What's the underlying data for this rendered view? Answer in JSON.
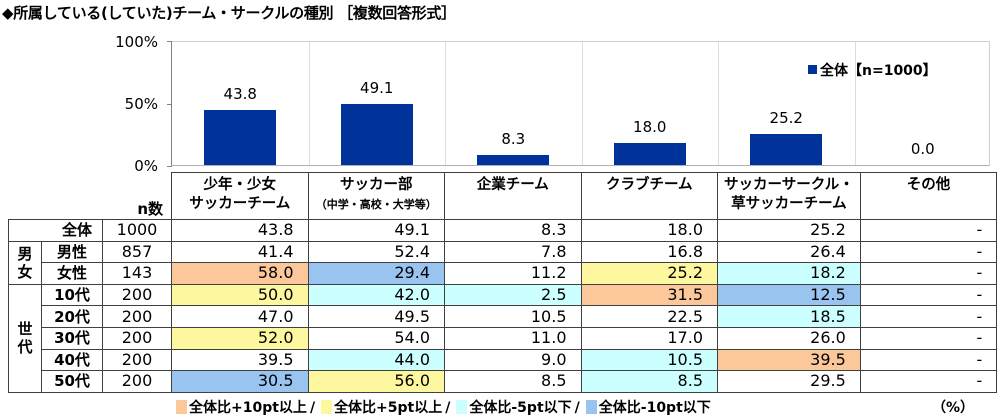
{
  "title": "◆所属している(していた)チーム・サークルの種別 ［複数回答形式］",
  "chart_data": {
    "type": "bar",
    "title": "所属している(していた)チーム・サークルの種別 ［複数回答形式］",
    "categories": [
      "少年・少女サッカーチーム",
      "サッカー部（中学・高校・大学等）",
      "企業チーム",
      "クラブチーム",
      "サッカーサークル・草サッカーチーム",
      "その他"
    ],
    "series": [
      {
        "name": "全体【n=1000】",
        "values": [
          43.8,
          49.1,
          8.3,
          18.0,
          25.2,
          0.0
        ],
        "color": "#003399"
      }
    ],
    "value_labels": [
      "43.8",
      "49.1",
      "8.3",
      "18.0",
      "25.2",
      "0.0"
    ],
    "yticks": [
      "100%",
      "50%",
      "0%"
    ],
    "ylim": [
      0,
      100
    ],
    "xlabel": "",
    "ylabel": "",
    "legend_position": "top-right",
    "grid": "vertical category separators"
  },
  "legend": {
    "label": "全体【n=1000】"
  },
  "table": {
    "n_header": "n数",
    "headers": [
      {
        "line1": "少年・少女",
        "line2": "サッカーチーム",
        "small": false
      },
      {
        "line1": "サッカー部",
        "line2": "（中学・高校・大学等）",
        "small": true
      },
      {
        "line1": "企業チーム",
        "line2": "",
        "small": false
      },
      {
        "line1": "クラブチーム",
        "line2": "",
        "small": false
      },
      {
        "line1": "サッカーサークル・",
        "line2": "草サッカーチーム",
        "small": false
      },
      {
        "line1": "その他",
        "line2": "",
        "small": false
      }
    ],
    "groups": {
      "gender": "男女",
      "age": "世代"
    },
    "rows": [
      {
        "label": "全体",
        "n": "1000",
        "values": [
          "43.8",
          "49.1",
          "8.3",
          "18.0",
          "25.2",
          "-"
        ],
        "hl": [
          "",
          "",
          "",
          "",
          "",
          ""
        ]
      },
      {
        "label": "男性",
        "n": "857",
        "values": [
          "41.4",
          "52.4",
          "7.8",
          "16.8",
          "26.4",
          "-"
        ],
        "hl": [
          "",
          "",
          "",
          "",
          "",
          ""
        ]
      },
      {
        "label": "女性",
        "n": "143",
        "values": [
          "58.0",
          "29.4",
          "11.2",
          "25.2",
          "18.2",
          "-"
        ],
        "hl": [
          "p10",
          "m10",
          "",
          "p5",
          "m5",
          ""
        ]
      },
      {
        "label": "10代",
        "n": "200",
        "values": [
          "50.0",
          "42.0",
          "2.5",
          "31.5",
          "12.5",
          "-"
        ],
        "hl": [
          "p5",
          "m5",
          "m5",
          "p10",
          "m10",
          ""
        ]
      },
      {
        "label": "20代",
        "n": "200",
        "values": [
          "47.0",
          "49.5",
          "10.5",
          "22.5",
          "18.5",
          "-"
        ],
        "hl": [
          "",
          "",
          "",
          "",
          "m5",
          ""
        ]
      },
      {
        "label": "30代",
        "n": "200",
        "values": [
          "52.0",
          "54.0",
          "11.0",
          "17.0",
          "26.0",
          "-"
        ],
        "hl": [
          "p5",
          "",
          "",
          "",
          "",
          ""
        ]
      },
      {
        "label": "40代",
        "n": "200",
        "values": [
          "39.5",
          "44.0",
          "9.0",
          "10.5",
          "39.5",
          "-"
        ],
        "hl": [
          "",
          "m5",
          "",
          "m5",
          "p10",
          ""
        ]
      },
      {
        "label": "50代",
        "n": "200",
        "values": [
          "30.5",
          "56.0",
          "8.5",
          "8.5",
          "29.5",
          "-"
        ],
        "hl": [
          "m10",
          "p5",
          "",
          "m5",
          "",
          ""
        ]
      }
    ]
  },
  "footer": {
    "items": [
      {
        "key": "p10",
        "label": "全体比+10pt以上",
        "color": "#fcc89b"
      },
      {
        "key": "p5",
        "label": "全体比+5pt以上",
        "color": "#fdf8a0"
      },
      {
        "key": "m5",
        "label": "全体比-5pt以下",
        "color": "#ccffff"
      },
      {
        "key": "m10",
        "label": "全体比-10pt以下",
        "color": "#99c4f0"
      }
    ],
    "separator": "/",
    "unit": "（%）"
  }
}
